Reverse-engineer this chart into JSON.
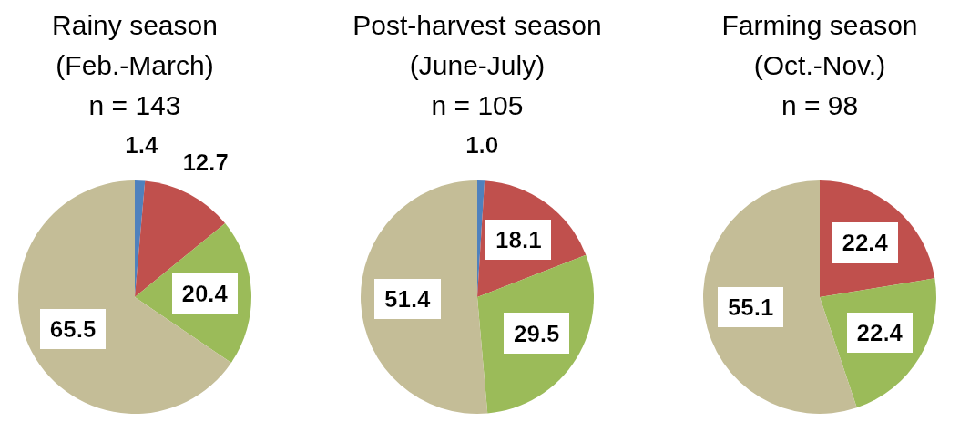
{
  "chart_data": [
    {
      "type": "pie",
      "title": "Rainy season\n(Feb.-March)",
      "subtitle": "n = 143",
      "categories": [
        null,
        null,
        null,
        null
      ],
      "values": [
        1.4,
        12.7,
        20.4,
        65.5
      ],
      "value_labels": [
        "1.4",
        "12.7",
        "20.4",
        "65.5"
      ],
      "colors": [
        "#4f81bd",
        "#c0504d",
        "#9bbb59",
        "#c4bd97"
      ]
    },
    {
      "type": "pie",
      "title": "Post-harvest season\n(June-July)",
      "subtitle": "n = 105",
      "categories": [
        null,
        null,
        null,
        null
      ],
      "values": [
        1.0,
        18.1,
        29.5,
        51.4
      ],
      "value_labels": [
        "1.0",
        "18.1",
        "29.5",
        "51.4"
      ],
      "colors": [
        "#4f81bd",
        "#c0504d",
        "#9bbb59",
        "#c4bd97"
      ]
    },
    {
      "type": "pie",
      "title": "Farming season\n(Oct.-Nov.)",
      "subtitle": "n = 98",
      "categories": [
        null,
        null,
        null
      ],
      "values": [
        22.4,
        22.4,
        55.1
      ],
      "value_labels": [
        "22.4",
        "22.4",
        "55.1"
      ],
      "colors": [
        "#c0504d",
        "#9bbb59",
        "#c4bd97"
      ]
    }
  ]
}
